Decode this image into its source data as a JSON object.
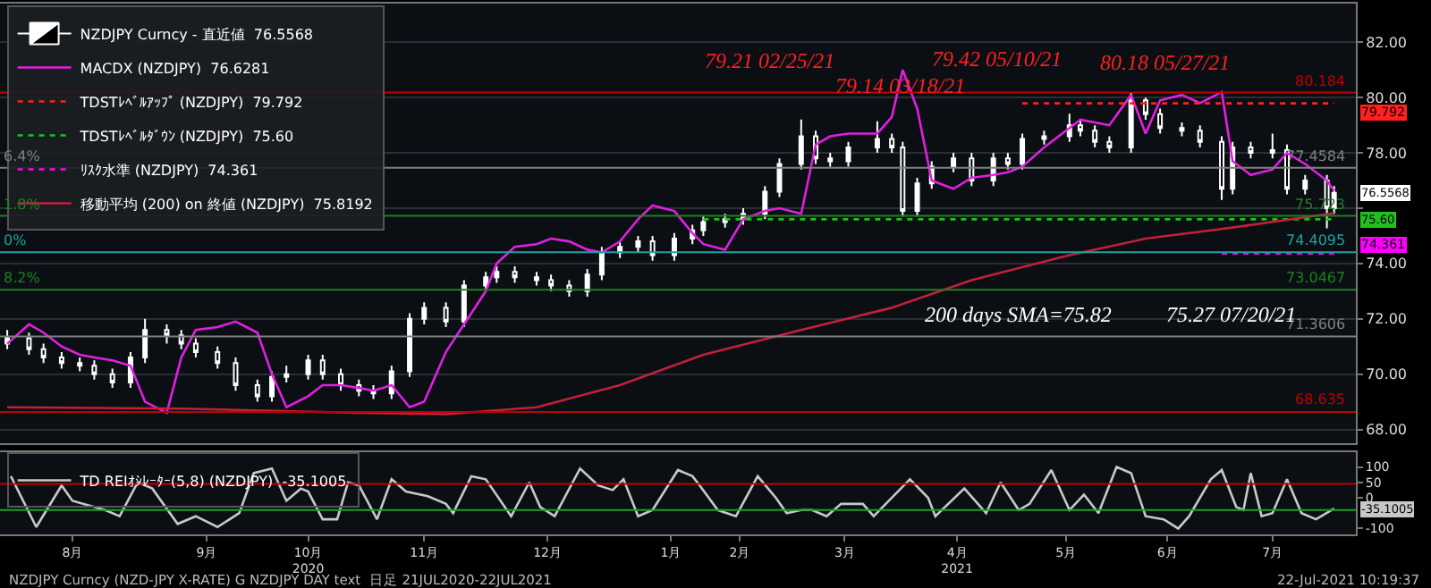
{
  "chart_data": [
    {
      "type": "candlestick",
      "legend": "top left",
      "grid": "y",
      "tick_labels": "y",
      "xlim": [
        "2020-07-19",
        "2021-07-28"
      ],
      "ylim": [
        67.5,
        83.4
      ],
      "yticks": [
        {
          "value": 68,
          "label": "68.00"
        },
        {
          "value": 70,
          "label": "70.00"
        },
        {
          "value": 72,
          "label": "72.00"
        },
        {
          "value": 74,
          "label": "74.00"
        },
        {
          "value": 76,
          "label": null
        },
        {
          "value": 78,
          "label": "78.00"
        },
        {
          "value": 80,
          "label": "80.00"
        },
        {
          "value": 82,
          "label": "82.00"
        }
      ],
      "x": [
        "2020-07-21",
        "2020-07-27",
        "2020-07-31",
        "2020-08-05",
        "2020-08-10",
        "2020-08-14",
        "2020-08-19",
        "2020-08-24",
        "2020-08-28",
        "2020-09-03",
        "2020-09-07",
        "2020-09-11",
        "2020-09-17",
        "2020-09-22",
        "2020-09-28",
        "2020-10-02",
        "2020-10-06",
        "2020-10-12",
        "2020-10-16",
        "2020-10-21",
        "2020-10-26",
        "2020-10-30",
        "2020-11-04",
        "2020-11-09",
        "2020-11-13",
        "2020-11-19",
        "2020-11-24",
        "2020-11-30",
        "2020-12-03",
        "2020-12-08",
        "2020-12-14",
        "2020-12-18",
        "2020-12-23",
        "2020-12-28",
        "2021-01-01",
        "2021-01-06",
        "2021-01-11",
        "2021-01-15",
        "2021-01-21",
        "2021-01-26",
        "2021-01-29",
        "2021-02-04",
        "2021-02-09",
        "2021-02-15",
        "2021-02-19",
        "2021-02-25",
        "2021-03-01",
        "2021-03-05",
        "2021-03-10",
        "2021-03-18",
        "2021-03-22",
        "2021-03-25",
        "2021-03-29",
        "2021-04-02",
        "2021-04-08",
        "2021-04-13",
        "2021-04-19",
        "2021-04-23",
        "2021-04-27",
        "2021-05-03",
        "2021-05-10",
        "2021-05-13",
        "2021-05-17",
        "2021-05-21",
        "2021-05-27",
        "2021-05-31",
        "2021-06-04",
        "2021-06-10",
        "2021-06-15",
        "2021-06-21",
        "2021-06-24",
        "2021-06-29",
        "2021-07-05",
        "2021-07-09",
        "2021-07-14",
        "2021-07-20",
        "2021-07-22"
      ],
      "series": [
        {
          "type": "candlestick",
          "name": "NZDJPY Curncy - 直近値  76.5568",
          "color": "#ffffff",
          "ohlc": [
            [
              71.1,
              71.6,
              70.9,
              71.3
            ],
            [
              71.3,
              71.5,
              70.7,
              70.9
            ],
            [
              70.9,
              71.1,
              70.4,
              70.6
            ],
            [
              70.6,
              70.8,
              70.2,
              70.4
            ],
            [
              70.4,
              70.6,
              70.1,
              70.3
            ],
            [
              70.3,
              70.5,
              69.8,
              70.0
            ],
            [
              70.0,
              70.2,
              69.5,
              69.7
            ],
            [
              69.7,
              70.8,
              69.5,
              70.6
            ],
            [
              70.6,
              72.0,
              70.4,
              71.6
            ],
            [
              71.6,
              71.8,
              71.1,
              71.4
            ],
            [
              71.4,
              71.6,
              70.9,
              71.1
            ],
            [
              71.1,
              71.3,
              70.6,
              70.8
            ],
            [
              70.8,
              71.0,
              70.2,
              70.4
            ],
            [
              70.4,
              70.6,
              69.4,
              69.6
            ],
            [
              69.6,
              69.8,
              69.0,
              69.2
            ],
            [
              69.2,
              70.1,
              69.0,
              69.9
            ],
            [
              69.9,
              70.3,
              69.7,
              70.0
            ],
            [
              70.0,
              70.7,
              69.8,
              70.5
            ],
            [
              70.5,
              70.7,
              69.8,
              70.0
            ],
            [
              70.0,
              70.2,
              69.4,
              69.6
            ],
            [
              69.6,
              69.8,
              69.2,
              69.4
            ],
            [
              69.4,
              69.6,
              69.1,
              69.3
            ],
            [
              69.3,
              70.3,
              69.1,
              70.1
            ],
            [
              70.1,
              72.2,
              69.9,
              72.0
            ],
            [
              72.0,
              72.6,
              71.8,
              72.4
            ],
            [
              72.4,
              72.6,
              71.7,
              71.9
            ],
            [
              71.9,
              73.4,
              71.7,
              73.2
            ],
            [
              73.2,
              73.7,
              73.0,
              73.5
            ],
            [
              73.5,
              73.9,
              73.3,
              73.7
            ],
            [
              73.7,
              73.9,
              73.3,
              73.5
            ],
            [
              73.5,
              73.7,
              73.2,
              73.4
            ],
            [
              73.4,
              73.6,
              73.0,
              73.2
            ],
            [
              73.2,
              73.4,
              72.8,
              73.0
            ],
            [
              73.0,
              73.8,
              72.8,
              73.6
            ],
            [
              73.6,
              74.6,
              73.4,
              74.4
            ],
            [
              74.4,
              74.8,
              74.2,
              74.6
            ],
            [
              74.6,
              75.0,
              74.4,
              74.8
            ],
            [
              74.8,
              75.0,
              74.1,
              74.3
            ],
            [
              74.3,
              75.1,
              74.1,
              74.9
            ],
            [
              74.9,
              75.4,
              74.7,
              75.2
            ],
            [
              75.2,
              75.7,
              75.0,
              75.5
            ],
            [
              75.5,
              75.8,
              75.3,
              75.6
            ],
            [
              75.6,
              76.0,
              75.4,
              75.8
            ],
            [
              75.8,
              76.8,
              75.6,
              76.6
            ],
            [
              76.6,
              77.8,
              76.4,
              77.6
            ],
            [
              77.6,
              79.21,
              77.4,
              78.6
            ],
            [
              78.6,
              78.8,
              77.6,
              77.8
            ],
            [
              77.8,
              78.0,
              77.5,
              77.7
            ],
            [
              77.7,
              78.4,
              77.5,
              78.2
            ],
            [
              78.2,
              79.14,
              78.0,
              78.5
            ],
            [
              78.5,
              78.7,
              78.0,
              78.2
            ],
            [
              78.2,
              78.4,
              75.7,
              75.9
            ],
            [
              75.9,
              77.1,
              75.7,
              76.9
            ],
            [
              76.9,
              77.7,
              76.7,
              77.5
            ],
            [
              77.5,
              78.0,
              77.3,
              77.8
            ],
            [
              77.8,
              78.0,
              76.8,
              77.0
            ],
            [
              77.0,
              78.0,
              76.8,
              77.8
            ],
            [
              77.8,
              78.0,
              77.4,
              77.6
            ],
            [
              77.6,
              78.7,
              77.4,
              78.5
            ],
            [
              78.5,
              78.8,
              78.3,
              78.6
            ],
            [
              78.6,
              79.42,
              78.4,
              79.0
            ],
            [
              79.0,
              79.2,
              78.6,
              78.8
            ],
            [
              78.8,
              79.0,
              78.2,
              78.4
            ],
            [
              78.4,
              78.6,
              78.0,
              78.2
            ],
            [
              78.2,
              80.18,
              78.0,
              79.9
            ],
            [
              79.9,
              80.0,
              79.2,
              79.4
            ],
            [
              79.4,
              79.6,
              78.7,
              78.9
            ],
            [
              78.9,
              79.1,
              78.6,
              78.8
            ],
            [
              78.8,
              79.0,
              78.2,
              78.4
            ],
            [
              78.4,
              78.6,
              76.3,
              76.7
            ],
            [
              76.7,
              78.4,
              76.5,
              78.2
            ],
            [
              78.2,
              78.4,
              77.8,
              78.0
            ],
            [
              78.0,
              78.7,
              77.8,
              78.1
            ],
            [
              78.1,
              78.3,
              76.5,
              76.7
            ],
            [
              76.7,
              77.2,
              76.5,
              77.0
            ],
            [
              77.0,
              77.2,
              75.27,
              76.0
            ],
            [
              76.0,
              76.8,
              75.8,
              76.5568
            ]
          ]
        },
        {
          "type": "line",
          "name": "MACDX (NZDJPY)  76.6281",
          "color": "#e020e0",
          "values": [
            71.1,
            71.8,
            71.5,
            71.0,
            70.7,
            70.6,
            70.5,
            70.3,
            69.0,
            68.6,
            70.6,
            71.6,
            71.7,
            71.9,
            71.5,
            70.0,
            68.8,
            69.2,
            69.6,
            69.6,
            69.5,
            69.4,
            69.6,
            68.8,
            69.0,
            70.8,
            71.8,
            73.0,
            74.0,
            74.6,
            74.7,
            74.9,
            74.8,
            74.5,
            74.4,
            74.8,
            75.6,
            76.1,
            75.9,
            75.1,
            74.7,
            74.5,
            75.6,
            75.9,
            76.0,
            75.8,
            78.3,
            78.6,
            78.7,
            78.7,
            79.3,
            81.0,
            79.6,
            77.0,
            76.7,
            77.1,
            77.2,
            77.3,
            77.5,
            78.2,
            78.9,
            79.2,
            79.1,
            79.0,
            80.1,
            78.7,
            79.9,
            80.1,
            79.8,
            80.2,
            77.7,
            77.2,
            77.4,
            78.0,
            77.6,
            77.0,
            76.6281
          ]
        },
        {
          "type": "line",
          "name": "TDSTﾚﾍﾞﾙｱｯﾌﾟ (NZDJPY)  79.792",
          "color": "#ff2020",
          "line_style": "dotted",
          "x": [
            "2021-04-27",
            "2021-07-22"
          ],
          "values": [
            79.792,
            79.792
          ]
        },
        {
          "type": "line",
          "name": "TDSTﾚﾍﾞﾙﾀﾞｳﾝ (NZDJPY)  75.60",
          "color": "#20c020",
          "line_style": "dotted",
          "x": [
            "2021-01-29",
            "2021-07-22"
          ],
          "values": [
            75.6,
            75.6
          ]
        },
        {
          "type": "line",
          "name": "ﾘｽｸ水準 (NZDJPY)  74.361",
          "color": "#ff00ff",
          "line_style": "dotted",
          "x": [
            "2021-06-21",
            "2021-07-22"
          ],
          "values": [
            74.361,
            74.361
          ]
        },
        {
          "type": "line",
          "name": "移動平均 (200) on 終値 (NZDJPY)  75.8192",
          "color": "#c0203a",
          "x": [
            "2020-07-21",
            "2020-09-07",
            "2020-10-26",
            "2020-11-19",
            "2020-12-14",
            "2021-01-06",
            "2021-01-29",
            "2021-02-25",
            "2021-03-22",
            "2021-04-13",
            "2021-05-10",
            "2021-05-31",
            "2021-06-24",
            "2021-07-22"
          ],
          "values": [
            68.8,
            68.75,
            68.6,
            68.55,
            68.8,
            69.6,
            70.7,
            71.6,
            72.4,
            73.4,
            74.3,
            74.9,
            75.3,
            75.8192
          ]
        }
      ],
      "ref_lines": [
        {
          "axis": "y",
          "value": 80.184,
          "label": "80.184",
          "color": "#c00000"
        },
        {
          "axis": "y",
          "value": 77.4584,
          "label": "77.4584",
          "color": "#808080"
        },
        {
          "axis": "y",
          "value": 75.723,
          "label": "75.723",
          "color": "#208020"
        },
        {
          "axis": "y",
          "value": 74.4095,
          "label": "74.4095",
          "color": "#20a0a0"
        },
        {
          "axis": "y",
          "value": 73.0467,
          "label": "73.0467",
          "color": "#208020"
        },
        {
          "axis": "y",
          "value": 71.3606,
          "label": "71.3606",
          "color": "#808080"
        },
        {
          "axis": "y",
          "value": 68.635,
          "label": "68.635",
          "color": "#c00000"
        }
      ],
      "annotations": [
        "79.21 02/25/21",
        "79.14 03/18/21",
        "79.42 05/10/21",
        "80.18 05/27/21",
        "200 days SMA=75.82",
        "75.27 07/20/21",
        {
          "text": "6.4%",
          "x": "2020-07-19",
          "y": 77.4584
        },
        {
          "text": "1.8%",
          "x": "2020-07-19",
          "y": 75.723
        },
        {
          "text": "0%",
          "x": "2020-07-19",
          "y": 74.4095
        },
        {
          "text": "8.2%",
          "x": "2020-07-19",
          "y": 73.0467
        },
        {
          "text": "79.792",
          "x": "2021-07-22",
          "y": 79.792
        },
        {
          "text": "76.5568",
          "x": "2021-07-22",
          "y": 76.5568
        },
        {
          "text": "75.60",
          "x": "2021-07-22",
          "y": 75.6
        },
        {
          "text": "74.361",
          "x": "2021-07-22",
          "y": 74.361
        }
      ]
    },
    {
      "type": "line",
      "legend": "top left",
      "xlim": [
        "2020-07-19",
        "2021-07-28"
      ],
      "ylim": [
        -119,
        148
      ],
      "yticks": [
        100,
        50,
        0,
        -100
      ],
      "xticks": [
        {
          "value": "2020-08-08",
          "label": "8月"
        },
        {
          "value": "2020-09-14",
          "label": "9月"
        },
        {
          "value": "2020-10-12",
          "label": "10月\n2020"
        },
        {
          "value": "2020-11-13",
          "label": "11月"
        },
        {
          "value": "2020-12-17",
          "label": "12月"
        },
        {
          "value": "2021-01-20",
          "label": "1月"
        },
        {
          "value": "2021-02-08",
          "label": "2月"
        },
        {
          "value": "2021-03-09",
          "label": "3月"
        },
        {
          "value": "2021-04-09",
          "label": "4月\n2021"
        },
        {
          "value": "2021-05-09",
          "label": "5月"
        },
        {
          "value": "2021-06-06",
          "label": "6月"
        },
        {
          "value": "2021-07-05",
          "label": "7月"
        }
      ],
      "x": [
        "2020-07-22",
        "2020-07-29",
        "2020-08-05",
        "2020-08-08",
        "2020-08-17",
        "2020-08-21",
        "2020-08-26",
        "2020-08-30",
        "2020-09-06",
        "2020-09-11",
        "2020-09-17",
        "2020-09-23",
        "2020-09-27",
        "2020-10-02",
        "2020-10-06",
        "2020-10-10",
        "2020-10-12",
        "2020-10-16",
        "2020-10-20",
        "2020-10-23",
        "2020-10-26",
        "2020-10-31",
        "2020-11-04",
        "2020-11-08",
        "2020-11-14",
        "2020-11-19",
        "2020-11-21",
        "2020-11-26",
        "2020-11-30",
        "2020-12-07",
        "2020-12-12",
        "2020-12-15",
        "2020-12-19",
        "2020-12-26",
        "2020-12-31",
        "2021-01-04",
        "2021-01-07",
        "2021-01-11",
        "2021-01-15",
        "2021-01-22",
        "2021-01-26",
        "2021-01-28",
        "2021-02-02",
        "2021-02-07",
        "2021-02-13",
        "2021-02-18",
        "2021-02-21",
        "2021-02-25",
        "2021-02-28",
        "2021-03-04",
        "2021-03-08",
        "2021-03-14",
        "2021-03-17",
        "2021-03-27",
        "2021-04-01",
        "2021-04-03",
        "2021-04-11",
        "2021-04-17",
        "2021-04-21",
        "2021-04-26",
        "2021-04-29",
        "2021-05-05",
        "2021-05-10",
        "2021-05-14",
        "2021-05-18",
        "2021-05-23",
        "2021-05-27",
        "2021-05-31",
        "2021-06-05",
        "2021-06-09",
        "2021-06-12",
        "2021-06-18",
        "2021-06-21",
        "2021-06-25",
        "2021-06-27",
        "2021-06-29",
        "2021-07-02",
        "2021-07-05",
        "2021-07-09",
        "2021-07-13",
        "2021-07-17",
        "2021-07-22"
      ],
      "series": [
        {
          "name": "TD REIｵｼﾚｰﾀｰ(5,8) (NZDJPY)  -35.1005",
          "color": "#c8c8c8",
          "values": [
            70,
            -95,
            40,
            -10,
            -40,
            -60,
            50,
            30,
            -85,
            -60,
            -95,
            -50,
            80,
            95,
            -10,
            30,
            20,
            -70,
            -70,
            50,
            40,
            -70,
            60,
            20,
            5,
            -20,
            -50,
            70,
            60,
            -60,
            50,
            -30,
            -60,
            95,
            40,
            25,
            60,
            -60,
            -40,
            90,
            70,
            40,
            -40,
            -60,
            70,
            0,
            -50,
            -40,
            -40,
            -60,
            -20,
            -20,
            -60,
            60,
            0,
            -60,
            30,
            -50,
            50,
            -40,
            -20,
            90,
            -40,
            10,
            -50,
            100,
            80,
            -60,
            -70,
            -100,
            -60,
            60,
            90,
            -30,
            -40,
            80,
            -60,
            -50,
            60,
            -50,
            -70,
            -35.1005
          ]
        }
      ],
      "ref_lines": [
        {
          "axis": "y",
          "value": 45,
          "color": "#c00000"
        },
        {
          "axis": "y",
          "value": -40,
          "color": "#20a020"
        }
      ],
      "annotations": [
        {
          "text": "-35.1005",
          "x": "2021-07-22",
          "y": -35.1005
        },
        "NZDJPY Curncy (NZD-JPY X-RATE) G NZDJPY DAY text  日足 21JUL2020-22JUL2021",
        "22-Jul-2021 10:19:37"
      ]
    }
  ]
}
